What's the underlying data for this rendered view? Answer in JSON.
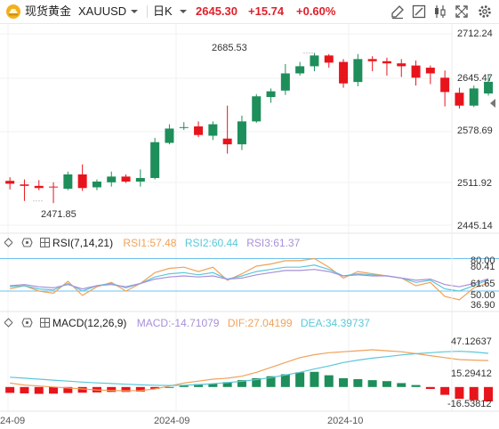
{
  "header": {
    "symbol_name": "现货黄金",
    "symbol_code": "XAUUSD",
    "timeframe": "日K",
    "last_price": "2645.30",
    "change": "+15.74",
    "change_pct": "+0.60%",
    "tools": [
      "draw-icon",
      "adjust-icon",
      "indicator-icon",
      "fullscreen-icon",
      "settings-icon"
    ]
  },
  "price_axis": {
    "ticks": [
      "2712.24",
      "2645.47",
      "2578.69",
      "2511.92",
      "2445.14"
    ],
    "high_label": "2685.53",
    "low_label": "2471.85"
  },
  "rsi": {
    "title": "RSI(7,14,21)",
    "rsi1": "RSI1:57.48",
    "rsi2": "RSI2:60.44",
    "rsi3": "RSI3:61.37",
    "axis": [
      "80.00",
      "80.41",
      "61.65",
      "50.00",
      "36.90"
    ]
  },
  "macd": {
    "title": "MACD(12,26,9)",
    "macd": "MACD:-14.71079",
    "dif": "DIF:27.04199",
    "dea": "DEA:34.39737",
    "axis": [
      "47.12637",
      "15.29412",
      "-16.53812"
    ]
  },
  "time_axis": [
    "24-09",
    "2024-09",
    "2024-10"
  ],
  "colors": {
    "up": "#1e8e5a",
    "down": "#e8141c",
    "rsi1": "#f0a25a",
    "rsi2": "#5ac8d8",
    "rsi3": "#a98fd9",
    "dif": "#f0a25a",
    "dea": "#5ac8d8",
    "ref_line": "#6ec3f0"
  },
  "chart_data": [
    {
      "type": "candlestick",
      "title": "",
      "ylim": [
        2445.14,
        2712.24
      ],
      "candles": [
        [
          2507,
          2512,
          2495,
          2503
        ],
        [
          2502,
          2509,
          2479,
          2500
        ],
        [
          2500,
          2508,
          2494,
          2497
        ],
        [
          2499,
          2505,
          2476,
          2498
        ],
        [
          2496,
          2520,
          2494,
          2516
        ],
        [
          2516,
          2530,
          2493,
          2497
        ],
        [
          2498,
          2509,
          2494,
          2506
        ],
        [
          2505,
          2520,
          2499,
          2513
        ],
        [
          2513,
          2516,
          2504,
          2506
        ],
        [
          2506,
          2523,
          2499,
          2511
        ],
        [
          2511,
          2567,
          2509,
          2561
        ],
        [
          2560,
          2586,
          2558,
          2580
        ],
        [
          2581,
          2589,
          2578,
          2582
        ],
        [
          2583,
          2590,
          2568,
          2571
        ],
        [
          2570,
          2590,
          2564,
          2586
        ],
        [
          2566,
          2612,
          2545,
          2558
        ],
        [
          2558,
          2598,
          2550,
          2590
        ],
        [
          2590,
          2628,
          2588,
          2625
        ],
        [
          2624,
          2636,
          2616,
          2632
        ],
        [
          2633,
          2670,
          2627,
          2657
        ],
        [
          2657,
          2673,
          2654,
          2667
        ],
        [
          2667,
          2685.53,
          2660,
          2682
        ],
        [
          2682,
          2684,
          2665,
          2672
        ],
        [
          2673,
          2677,
          2637,
          2643
        ],
        [
          2645,
          2684,
          2639,
          2677
        ],
        [
          2677,
          2681,
          2660,
          2674
        ],
        [
          2674,
          2679,
          2654,
          2671
        ],
        [
          2671,
          2677,
          2652,
          2667
        ],
        [
          2668,
          2675,
          2640,
          2651
        ],
        [
          2665,
          2668,
          2642,
          2657
        ],
        [
          2651,
          2661,
          2611,
          2631
        ],
        [
          2630,
          2637,
          2608,
          2612
        ],
        [
          2612,
          2640,
          2610,
          2636
        ],
        [
          2629,
          2655,
          2626,
          2645.3
        ]
      ]
    },
    {
      "type": "line",
      "title": "RSI(7,14,21)",
      "ylim": [
        36.9,
        80.41
      ],
      "series": [
        {
          "name": "RSI1",
          "values": [
            52,
            55,
            50,
            48,
            59,
            46,
            54,
            58,
            50,
            57,
            67,
            71,
            72,
            68,
            72,
            60,
            66,
            73,
            75,
            78,
            78,
            80,
            72,
            62,
            68,
            66,
            64,
            62,
            55,
            58,
            45,
            42,
            53,
            57.48
          ]
        },
        {
          "name": "RSI2",
          "values": [
            54,
            55,
            52,
            51,
            57,
            50,
            55,
            57,
            53,
            57,
            63,
            66,
            67,
            65,
            67,
            61,
            64,
            68,
            70,
            72,
            72,
            74,
            70,
            64,
            66,
            65,
            64,
            62,
            58,
            60,
            52,
            50,
            55,
            60.44
          ]
        },
        {
          "name": "RSI3",
          "values": [
            55,
            56,
            54,
            53,
            56,
            52,
            55,
            56,
            54,
            57,
            61,
            63,
            64,
            63,
            64,
            61,
            62,
            65,
            67,
            69,
            69,
            70,
            68,
            64,
            65,
            64,
            64,
            62,
            60,
            61,
            56,
            54,
            57,
            61.37
          ]
        }
      ]
    },
    {
      "type": "bar+line",
      "title": "MACD(12,26,9)",
      "ylim": [
        -16.53812,
        47.12637
      ],
      "series": [
        {
          "name": "MACD",
          "values": [
            -6,
            -6.5,
            -7,
            -6.8,
            -6.2,
            -5.8,
            -5.5,
            -5.0,
            -5.0,
            -4.6,
            -2,
            0,
            1.5,
            3,
            3.5,
            5,
            7,
            9,
            11,
            13,
            15,
            15.5,
            12,
            9,
            8,
            7,
            6,
            4,
            2,
            -2,
            -8,
            -12,
            -13.5,
            -14.71079
          ]
        },
        {
          "name": "DIF",
          "values": [
            4,
            2,
            1,
            0,
            -1,
            -2,
            -3,
            -3.5,
            -3.8,
            -3.6,
            -2,
            1,
            4,
            6,
            8,
            9,
            11,
            15,
            20,
            25,
            30,
            33,
            35,
            36,
            37,
            38,
            37,
            36,
            34,
            32,
            30,
            28,
            27.5,
            27.04199
          ]
        },
        {
          "name": "DEA",
          "values": [
            10,
            9,
            8,
            7,
            6,
            5,
            4.2,
            3.6,
            2.8,
            2.2,
            1.8,
            1.6,
            1.8,
            2.5,
            3.4,
            4.5,
            5.8,
            7.6,
            9.6,
            12.2,
            15,
            18.4,
            21.5,
            25,
            27.5,
            29.5,
            31,
            32.8,
            34,
            35,
            36,
            36.5,
            35.8,
            34.39737
          ]
        }
      ]
    }
  ]
}
